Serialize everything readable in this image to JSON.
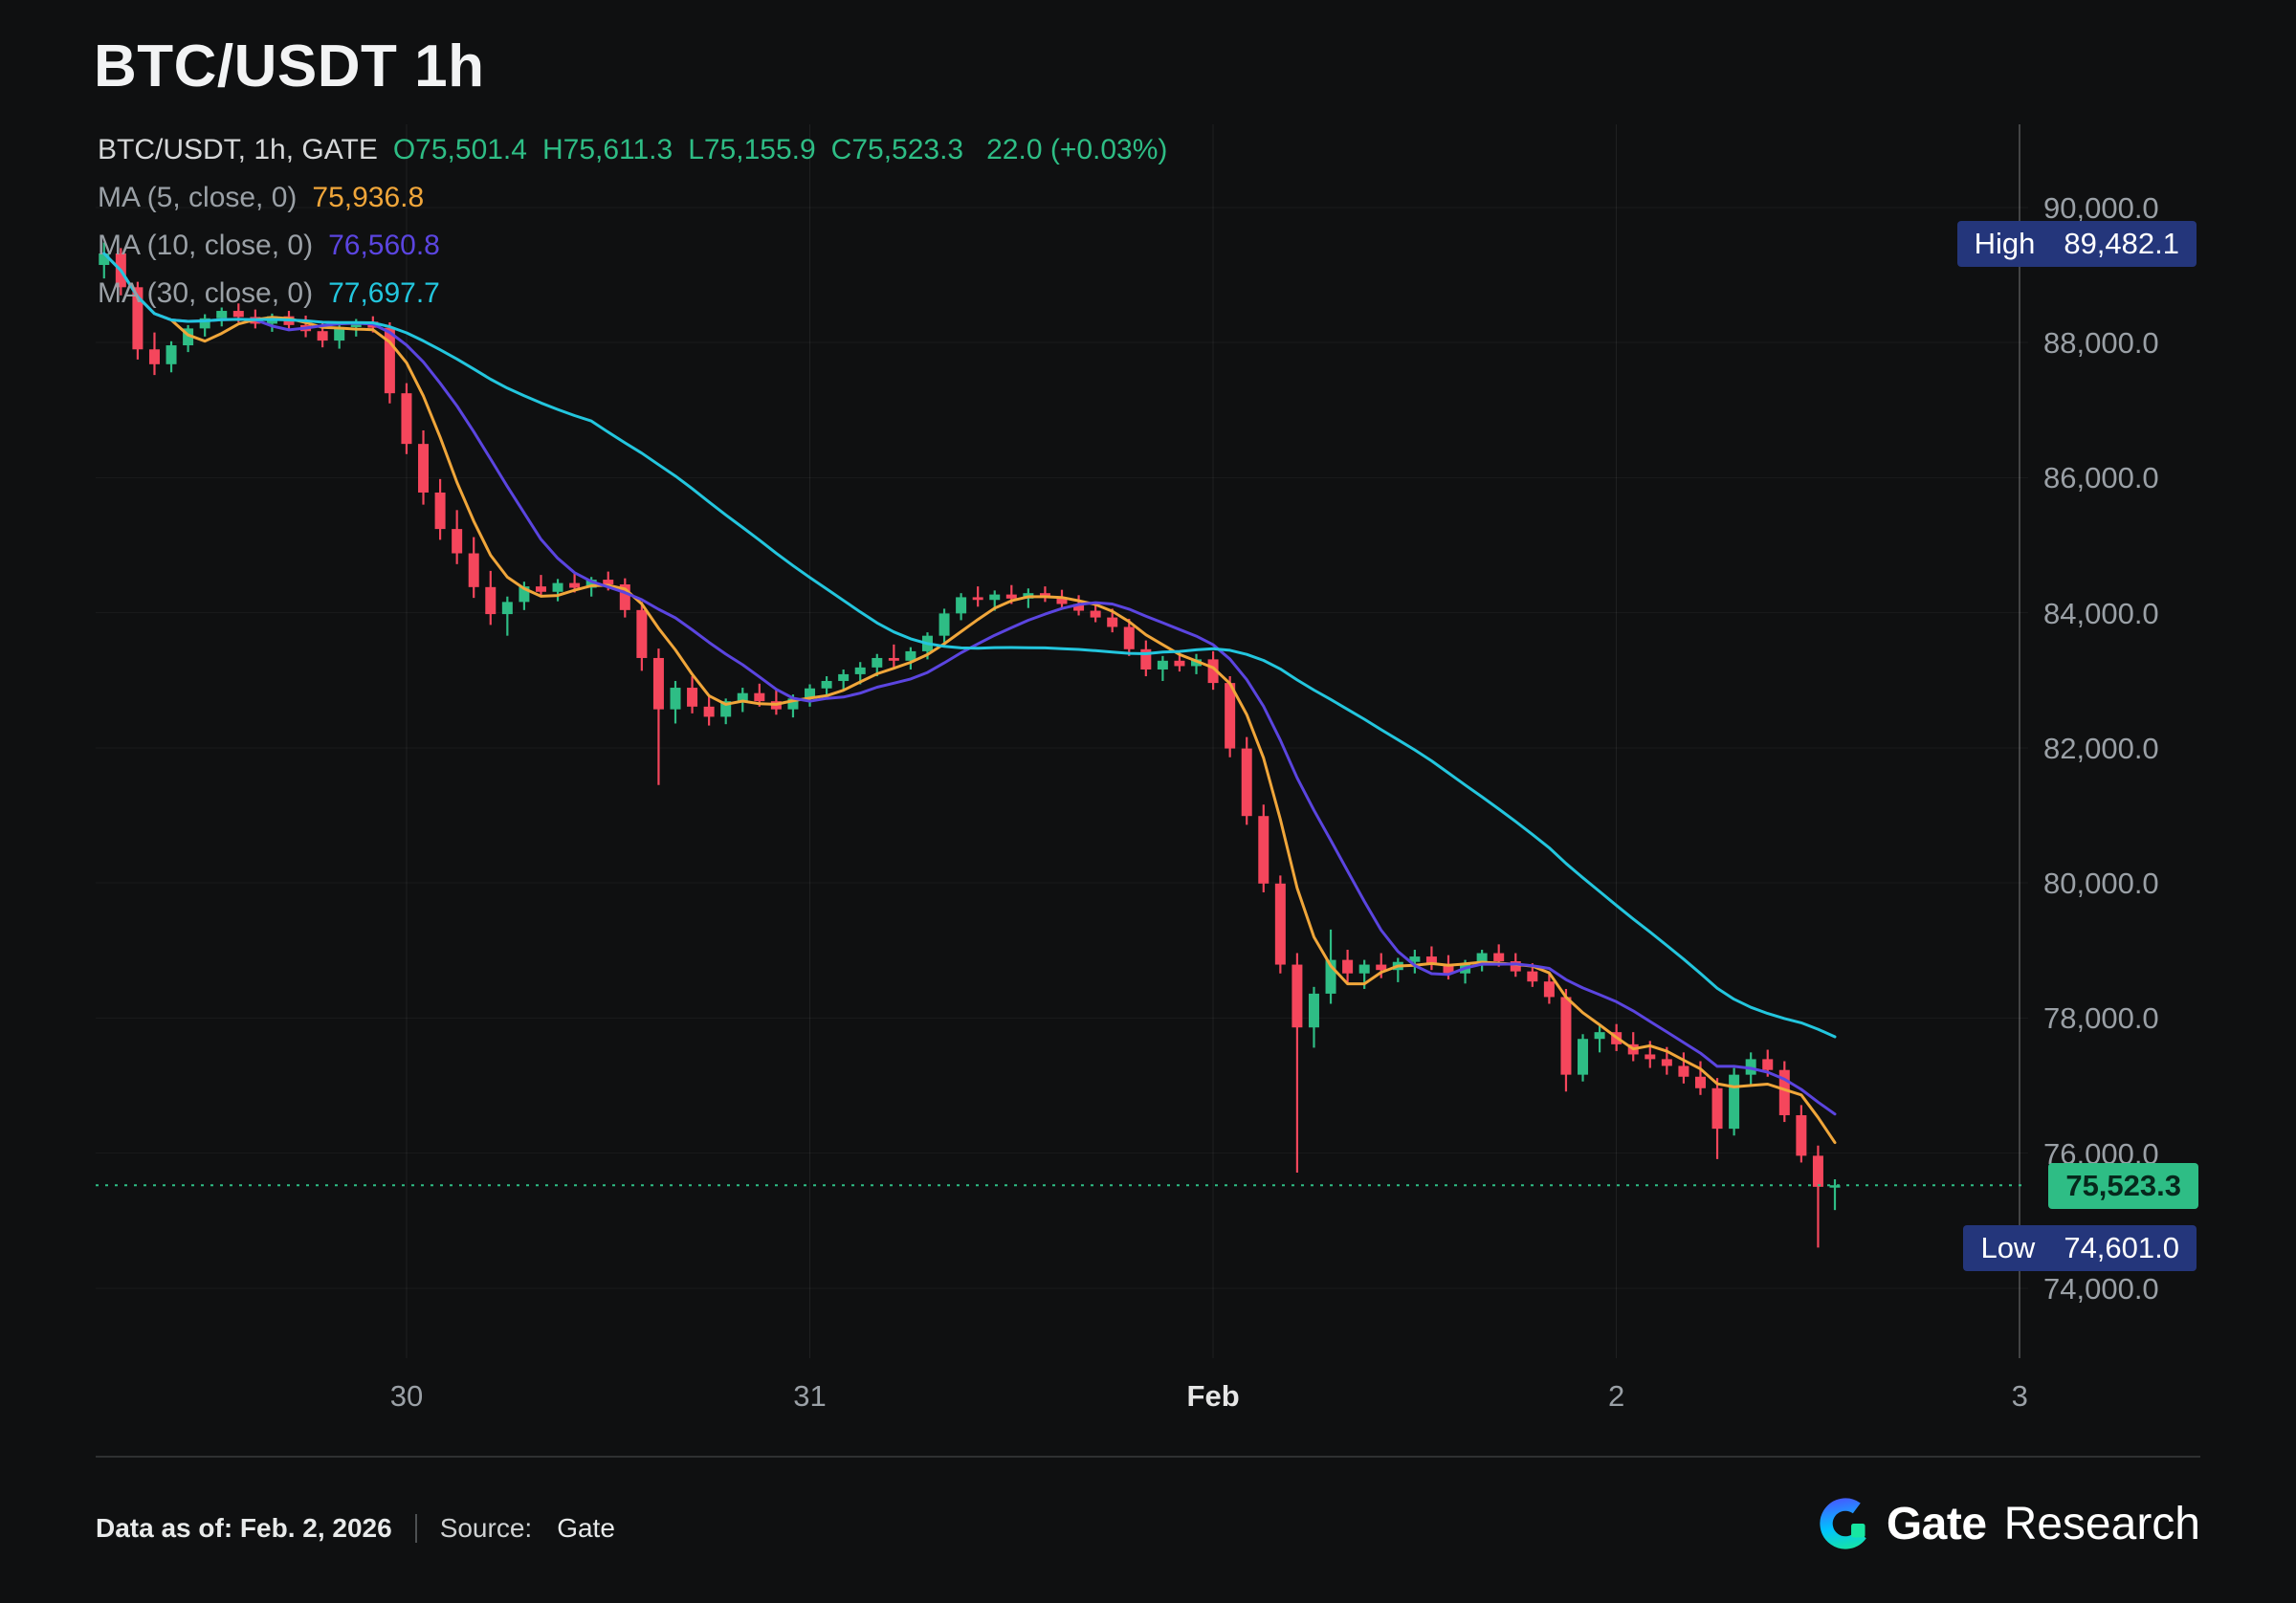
{
  "header": {
    "title": "BTC/USDT 1h"
  },
  "legend": {
    "symbol_line": {
      "label": "BTC/USDT, 1h, GATE",
      "o": "O75,501.4",
      "h": "H75,611.3",
      "l": "L75,155.9",
      "c": "C75,523.3",
      "change": "22.0 (+0.03%)"
    },
    "ma": [
      {
        "label": "MA (5, close, 0)",
        "value": "75,936.8"
      },
      {
        "label": "MA (10, close, 0)",
        "value": "76,560.8"
      },
      {
        "label": "MA (30, close, 0)",
        "value": "77,697.7"
      }
    ]
  },
  "chart_data": {
    "type": "candlestick",
    "title": "BTC/USDT 1h",
    "symbol": "BTC/USDT",
    "interval": "1h",
    "exchange": "GATE",
    "current_ohlc": {
      "open": 75501.4,
      "high": 75611.3,
      "low": 75155.9,
      "close": 75523.3,
      "change": 22.0,
      "change_pct": "+0.03%"
    },
    "ma_series": [
      {
        "window": 5,
        "last_value": 75936.8
      },
      {
        "window": 10,
        "last_value": 76560.8
      },
      {
        "window": 30,
        "last_value": 77697.7
      }
    ],
    "y_axis": {
      "tick_step": 2000,
      "ticks": [
        {
          "price": 90000,
          "label": "90,000.0"
        },
        {
          "price": 88000,
          "label": "88,000.0"
        },
        {
          "price": 86000,
          "label": "86,000.0"
        },
        {
          "price": 84000,
          "label": "84,000.0"
        },
        {
          "price": 82000,
          "label": "82,000.0"
        },
        {
          "price": 80000,
          "label": "80,000.0"
        },
        {
          "price": 78000,
          "label": "78,000.0"
        },
        {
          "price": 76000,
          "label": "76,000.0"
        },
        {
          "price": 74000,
          "label": "74,000.0"
        }
      ]
    },
    "x_axis": {
      "total_slots": 115,
      "ticks": [
        {
          "index": 18,
          "label": "30"
        },
        {
          "index": 42,
          "label": "31"
        },
        {
          "index": 66,
          "label": "Feb",
          "emphasis": true
        },
        {
          "index": 90,
          "label": "2"
        },
        {
          "index": 114,
          "label": "3",
          "axis_line": true
        }
      ]
    },
    "high_marker": {
      "label": "High",
      "value": 89482.1,
      "display": "89,482.1"
    },
    "low_marker": {
      "label": "Low",
      "value": 74601.0,
      "display": "74,601.0"
    },
    "last_price": {
      "value": 75523.3,
      "display": "75,523.3"
    },
    "candles": [
      [
        89150,
        89482,
        88950,
        89320
      ],
      [
        89320,
        89400,
        88700,
        88820
      ],
      [
        88820,
        88900,
        87750,
        87900
      ],
      [
        87900,
        88150,
        87520,
        87680
      ],
      [
        87680,
        88020,
        87560,
        87960
      ],
      [
        87960,
        88260,
        87860,
        88210
      ],
      [
        88210,
        88420,
        88090,
        88360
      ],
      [
        88360,
        88520,
        88240,
        88470
      ],
      [
        88470,
        88580,
        88300,
        88380
      ],
      [
        88380,
        88490,
        88210,
        88280
      ],
      [
        88280,
        88430,
        88160,
        88390
      ],
      [
        88390,
        88470,
        88200,
        88260
      ],
      [
        88260,
        88400,
        88080,
        88170
      ],
      [
        88170,
        88290,
        87930,
        88030
      ],
      [
        88030,
        88270,
        87910,
        88230
      ],
      [
        88230,
        88350,
        88090,
        88310
      ],
      [
        88310,
        88390,
        88150,
        88220
      ],
      [
        88220,
        88300,
        87100,
        87250
      ],
      [
        87250,
        87400,
        86350,
        86500
      ],
      [
        86500,
        86700,
        85600,
        85780
      ],
      [
        85780,
        85980,
        85080,
        85240
      ],
      [
        85240,
        85520,
        84720,
        84880
      ],
      [
        84880,
        85120,
        84220,
        84380
      ],
      [
        84380,
        84620,
        83820,
        83980
      ],
      [
        83980,
        84240,
        83660,
        84160
      ],
      [
        84160,
        84460,
        84040,
        84390
      ],
      [
        84390,
        84560,
        84230,
        84310
      ],
      [
        84310,
        84500,
        84170,
        84440
      ],
      [
        84440,
        84590,
        84300,
        84370
      ],
      [
        84370,
        84530,
        84240,
        84490
      ],
      [
        84490,
        84610,
        84330,
        84420
      ],
      [
        84420,
        84510,
        83930,
        84040
      ],
      [
        84040,
        84160,
        83140,
        83330
      ],
      [
        83330,
        83470,
        81450,
        82570
      ],
      [
        82570,
        82990,
        82360,
        82890
      ],
      [
        82890,
        83060,
        82510,
        82610
      ],
      [
        82610,
        82790,
        82330,
        82460
      ],
      [
        82460,
        82730,
        82350,
        82690
      ],
      [
        82690,
        82890,
        82530,
        82810
      ],
      [
        82810,
        82950,
        82610,
        82690
      ],
      [
        82690,
        82860,
        82490,
        82570
      ],
      [
        82570,
        82790,
        82450,
        82730
      ],
      [
        82730,
        82940,
        82610,
        82880
      ],
      [
        82880,
        83060,
        82730,
        82990
      ],
      [
        82990,
        83160,
        82850,
        83090
      ],
      [
        83090,
        83270,
        82940,
        83190
      ],
      [
        83190,
        83390,
        83060,
        83330
      ],
      [
        83330,
        83530,
        83190,
        83290
      ],
      [
        83290,
        83490,
        83160,
        83430
      ],
      [
        83430,
        83710,
        83310,
        83660
      ],
      [
        83660,
        84060,
        83560,
        83990
      ],
      [
        83990,
        84290,
        83890,
        84230
      ],
      [
        84230,
        84390,
        84090,
        84190
      ],
      [
        84190,
        84330,
        84030,
        84270
      ],
      [
        84270,
        84410,
        84130,
        84210
      ],
      [
        84210,
        84360,
        84070,
        84290
      ],
      [
        84290,
        84390,
        84160,
        84230
      ],
      [
        84230,
        84340,
        84060,
        84130
      ],
      [
        84130,
        84260,
        83960,
        84030
      ],
      [
        84030,
        84160,
        83860,
        83930
      ],
      [
        83930,
        84060,
        83710,
        83790
      ],
      [
        83790,
        83910,
        83360,
        83460
      ],
      [
        83460,
        83590,
        83060,
        83160
      ],
      [
        83160,
        83360,
        82990,
        83290
      ],
      [
        83290,
        83430,
        83130,
        83210
      ],
      [
        83210,
        83390,
        83090,
        83310
      ],
      [
        83310,
        83430,
        82860,
        82960
      ],
      [
        82960,
        83060,
        81860,
        81990
      ],
      [
        81990,
        82160,
        80860,
        80990
      ],
      [
        80990,
        81160,
        79860,
        79990
      ],
      [
        79990,
        80110,
        78660,
        78790
      ],
      [
        78790,
        78960,
        75710,
        77860
      ],
      [
        77860,
        78460,
        77560,
        78360
      ],
      [
        78360,
        79310,
        78210,
        78860
      ],
      [
        78860,
        79010,
        78510,
        78660
      ],
      [
        78660,
        78860,
        78430,
        78790
      ],
      [
        78790,
        78960,
        78590,
        78710
      ],
      [
        78710,
        78890,
        78530,
        78830
      ],
      [
        78830,
        79010,
        78660,
        78910
      ],
      [
        78910,
        79060,
        78710,
        78790
      ],
      [
        78790,
        78930,
        78570,
        78660
      ],
      [
        78660,
        78860,
        78510,
        78810
      ],
      [
        78810,
        79010,
        78690,
        78960
      ],
      [
        78960,
        79090,
        78760,
        78840
      ],
      [
        78840,
        78960,
        78610,
        78690
      ],
      [
        78690,
        78810,
        78460,
        78540
      ],
      [
        78540,
        78660,
        78210,
        78310
      ],
      [
        78310,
        78430,
        76910,
        77160
      ],
      [
        77160,
        77760,
        77060,
        77690
      ],
      [
        77690,
        77890,
        77490,
        77790
      ],
      [
        77790,
        77910,
        77510,
        77610
      ],
      [
        77610,
        77790,
        77360,
        77460
      ],
      [
        77460,
        77660,
        77260,
        77390
      ],
      [
        77390,
        77570,
        77160,
        77290
      ],
      [
        77290,
        77490,
        77030,
        77130
      ],
      [
        77130,
        77360,
        76860,
        76960
      ],
      [
        76960,
        77110,
        75910,
        76360
      ],
      [
        76360,
        77260,
        76260,
        77160
      ],
      [
        77160,
        77490,
        77010,
        77390
      ],
      [
        77390,
        77530,
        77130,
        77230
      ],
      [
        77230,
        77360,
        76460,
        76560
      ],
      [
        76560,
        76710,
        75860,
        75960
      ],
      [
        75960,
        76110,
        74601,
        75500
      ],
      [
        75501.4,
        75611.3,
        75155.9,
        75523.3
      ]
    ]
  },
  "footer": {
    "data_as_of": "Data as of: Feb. 2, 2026",
    "source_label": "Source:",
    "source_value": "Gate",
    "brand_name": "Gate",
    "brand_suffix": "Research"
  },
  "colors": {
    "bg": "#0f1011",
    "green": "#2ebd85",
    "red": "#f5465c",
    "ma": [
      "#f0a63a",
      "#5b45e0",
      "#23c6de"
    ],
    "badge_navy": "#24367b",
    "badge_text_dark": "#06281c",
    "axis_text": "#9aa0a6",
    "title_text": "#f2f3f4",
    "legend_text": "#d5d7d8",
    "ma_label_text": "#9aa0a6"
  }
}
